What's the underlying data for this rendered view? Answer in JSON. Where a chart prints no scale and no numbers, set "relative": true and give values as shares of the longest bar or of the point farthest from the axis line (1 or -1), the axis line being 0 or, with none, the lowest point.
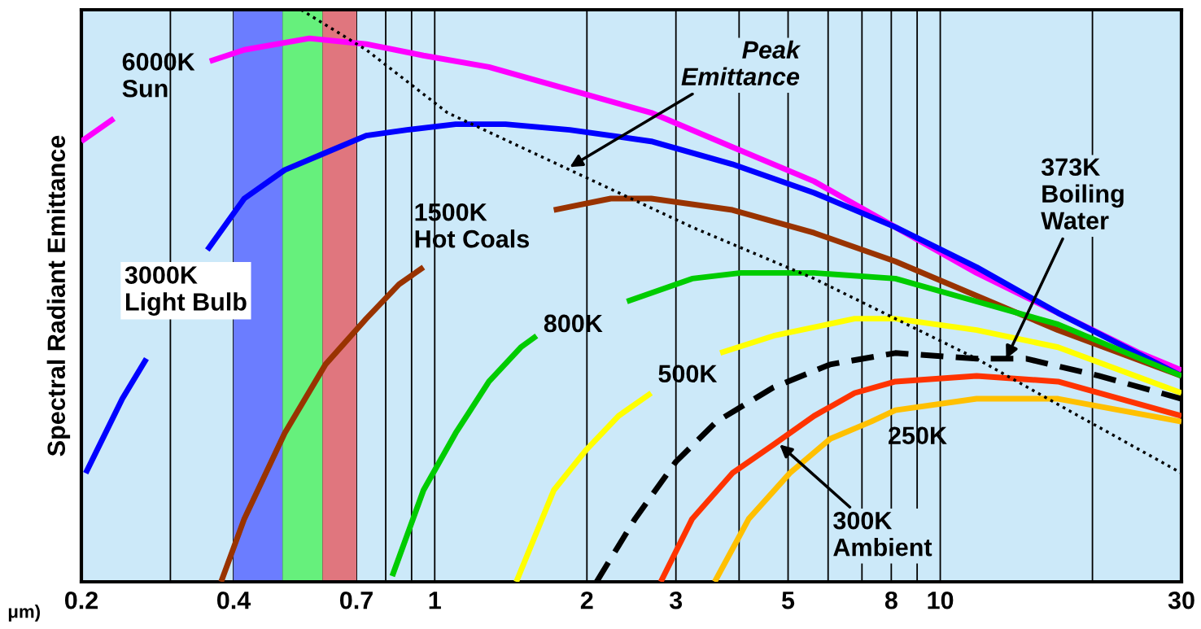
{
  "chart_data": {
    "type": "line",
    "relative": true,
    "log": "x",
    "ylabel": "Spectral Radiant Emittance",
    "xlabel": "μm)",
    "xlim": [
      0.2,
      30
    ],
    "xticks": [
      0.2,
      {
        "value": 0.3,
        "label": null
      },
      0.4,
      {
        "value": 0.5,
        "label": null
      },
      {
        "value": 0.6,
        "label": null
      },
      0.7,
      {
        "value": 0.8,
        "label": null
      },
      {
        "value": 0.9,
        "label": null
      },
      1,
      2,
      3,
      {
        "value": 4,
        "label": null
      },
      5,
      {
        "value": 6,
        "label": null
      },
      {
        "value": 7,
        "label": null
      },
      8,
      {
        "value": 9,
        "label": null
      },
      10,
      {
        "value": 20,
        "label": null
      },
      30
    ],
    "grid": "x",
    "legend": false,
    "bands": [
      {
        "axis": "x",
        "from": 0.4,
        "to": 0.5,
        "label": null,
        "color": "#6b7dff"
      },
      {
        "axis": "x",
        "from": 0.5,
        "to": 0.6,
        "label": null,
        "color": "#66f07c"
      },
      {
        "axis": "x",
        "from": 0.6,
        "to": 0.7,
        "label": null,
        "color": "#e0767e"
      }
    ],
    "series": [
      {
        "color": "#ff00ff",
        "x": [
          0.2,
          0.232,
          0.29,
          0.359,
          0.42,
          0.565,
          0.732,
          0.95,
          1.28,
          1.85,
          2.68,
          3.88,
          5.63,
          8.15,
          11.8,
          17.1,
          24.8,
          30
        ],
        "values": [
          0.77,
          0.81,
          null,
          0.91,
          0.93,
          0.95,
          0.94,
          0.92,
          0.9,
          0.86,
          0.82,
          0.76,
          0.7,
          0.62,
          0.54,
          0.47,
          0.4,
          0.37
        ]
      },
      {
        "color": "#0000ff",
        "x": [
          0.204,
          0.241,
          0.269,
          0.301,
          0.355,
          0.42,
          0.505,
          0.608,
          0.732,
          0.881,
          1.1,
          1.38,
          1.85,
          2.68,
          3.88,
          5.63,
          8.15,
          11.8,
          17.1,
          30
        ],
        "values": [
          0.19,
          0.32,
          0.39,
          null,
          0.58,
          0.67,
          0.72,
          0.75,
          0.78,
          0.79,
          0.8,
          0.8,
          0.79,
          0.77,
          0.73,
          0.68,
          0.62,
          0.55,
          0.47,
          0.36
        ]
      },
      {
        "color": "#993300",
        "x": [
          0.378,
          0.42,
          0.505,
          0.608,
          0.732,
          0.85,
          0.95,
          1.28,
          1.72,
          2.23,
          2.68,
          3.88,
          5.63,
          8.15,
          11.8,
          17.1,
          30
        ],
        "values": [
          0,
          0.11,
          0.26,
          0.38,
          0.46,
          0.52,
          0.55,
          null,
          0.65,
          0.67,
          0.67,
          0.65,
          0.61,
          0.56,
          0.5,
          0.44,
          0.36
        ]
      },
      {
        "color": "#00cc00",
        "x": [
          0.824,
          0.95,
          1.1,
          1.28,
          1.48,
          1.59,
          2.0,
          2.4,
          3.23,
          4.03,
          5.63,
          8.15,
          11.8,
          17.1,
          30
        ],
        "values": [
          0.01,
          0.16,
          0.26,
          0.35,
          0.41,
          0.43,
          null,
          0.49,
          0.53,
          0.54,
          0.54,
          0.53,
          0.49,
          0.45,
          0.36
        ]
      },
      {
        "color": "#ffff00",
        "x": [
          1.45,
          1.72,
          1.99,
          2.31,
          2.68,
          3.15,
          3.67,
          4.68,
          6.77,
          8.15,
          11.8,
          17.1,
          30
        ],
        "values": [
          0,
          0.16,
          0.23,
          0.29,
          0.33,
          null,
          0.4,
          0.43,
          0.46,
          0.46,
          0.44,
          0.41,
          0.33
        ]
      },
      {
        "color": "#000000",
        "line_style": "dashed",
        "x": [
          2.09,
          2.49,
          3.0,
          3.61,
          4.68,
          6.06,
          8.15,
          11.8,
          14.8,
          20.6,
          30
        ],
        "values": [
          0,
          0.11,
          0.21,
          0.28,
          0.34,
          0.38,
          0.4,
          0.39,
          0.39,
          0.36,
          0.32
        ]
      },
      {
        "color": "#ff3300",
        "x": [
          2.8,
          3.23,
          3.88,
          4.68,
          5.63,
          6.77,
          8.15,
          11.8,
          17.1,
          30
        ],
        "values": [
          0,
          0.11,
          0.19,
          0.24,
          0.29,
          0.33,
          0.35,
          0.36,
          0.35,
          0.29
        ]
      },
      {
        "color": "#ffc000",
        "x": [
          3.58,
          4.18,
          5.04,
          6.06,
          7.3,
          8.15,
          11.8,
          17.1,
          30
        ],
        "values": [
          0,
          0.11,
          0.19,
          0.25,
          0.28,
          0.3,
          0.32,
          0.32,
          0.28
        ]
      },
      {
        "color": "#000000",
        "line_style": "dotted",
        "x": [
          0.544,
          0.732,
          1.06,
          1.85,
          3.23,
          5.63,
          8.15,
          11.8,
          17.1,
          30
        ],
        "values": [
          1.0,
          0.93,
          0.82,
          0.72,
          0.62,
          0.53,
          0.46,
          0.39,
          0.31,
          0.19
        ]
      }
    ],
    "annotations": [
      "6000K\nSun",
      "3000K\nLight Bulb",
      "1500K\nHot Coals",
      "800K",
      "500K",
      "250K",
      {
        "text": "Peak\nEmittance",
        "x": 1.85,
        "y": 0.725
      },
      {
        "text": "373K\nBoiling\nWater",
        "x": 13.5,
        "y": 0.39
      },
      {
        "text": "300K\nAmbient",
        "x": 4.81,
        "y": 0.24
      }
    ]
  }
}
